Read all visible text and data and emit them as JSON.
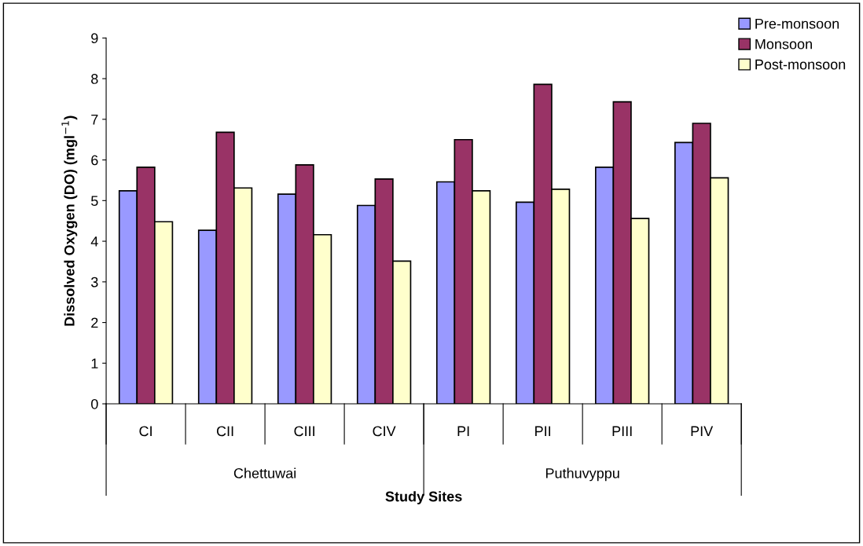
{
  "chart_data": {
    "type": "bar",
    "xlabel": "Study Sites",
    "ylabel": "Dissolved Oxygen (DO) (mgl$^{−1}$)",
    "categories": [
      "CI",
      "CII",
      "CIII",
      "CIV",
      "PI",
      "PII",
      "PIII",
      "PIV"
    ],
    "series": [
      {
        "name": "Pre-monsoon",
        "color": "#9999ff",
        "values": [
          5.24,
          4.27,
          5.16,
          4.88,
          5.46,
          4.96,
          5.82,
          6.43
        ]
      },
      {
        "name": "Monsoon",
        "color": "#993366",
        "values": [
          5.82,
          6.68,
          5.88,
          5.53,
          6.5,
          7.86,
          7.43,
          6.9
        ]
      },
      {
        "name": "Post-monsoon",
        "color": "#ffffcc",
        "values": [
          4.48,
          5.31,
          4.16,
          3.51,
          5.24,
          5.28,
          4.56,
          5.56
        ]
      }
    ],
    "annotations": [
      "Chettuwai",
      "Puthuvyppu"
    ],
    "ylim": [
      0,
      9
    ],
    "yticks": [
      0,
      1,
      2,
      3,
      4,
      5,
      6,
      7,
      8,
      9
    ],
    "grid": false,
    "legend": "top right"
  }
}
